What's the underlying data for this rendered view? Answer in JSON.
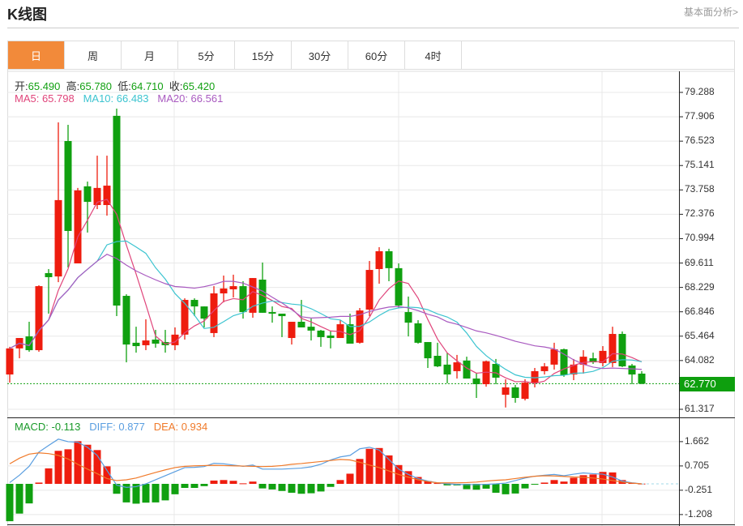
{
  "header": {
    "title": "K线图",
    "fundamental_link": "基本面分析>"
  },
  "tabs": [
    {
      "label": "日",
      "active": true
    },
    {
      "label": "周"
    },
    {
      "label": "月"
    },
    {
      "label": "5分"
    },
    {
      "label": "15分"
    },
    {
      "label": "30分"
    },
    {
      "label": "60分"
    },
    {
      "label": "4时"
    }
  ],
  "ohlc_info": {
    "open_label": "开:",
    "open": "65.490",
    "high_label": "高:",
    "high": "65.780",
    "low_label": "低:",
    "low": "64.710",
    "close_label": "收:",
    "close": "65.420"
  },
  "ma_info": {
    "ma5": "MA5: 65.798",
    "ma10": "MA10: 66.483",
    "ma20": "MA20: 66.561"
  },
  "macd_info": {
    "macd": "MACD: -0.113",
    "diff": "DIFF: 0.877",
    "dea": "DEA: 0.934"
  },
  "colors": {
    "up": "#ee1c0e",
    "down": "#10a010",
    "ma5": "#e0457b",
    "ma10": "#3cc4d0",
    "ma20": "#a95ac0",
    "diff": "#5a9ee0",
    "dea": "#f07a2a",
    "active_tab": "#f28a3a"
  },
  "chart_data": [
    {
      "type": "candlestick",
      "y_ticks": [
        "79.288",
        "77.906",
        "76.523",
        "75.141",
        "73.758",
        "72.376",
        "70.994",
        "69.611",
        "68.229",
        "66.846",
        "65.464",
        "64.082",
        "62.770",
        "61.317"
      ],
      "ylim": [
        61.317,
        79.288
      ],
      "last_price": "62.770",
      "moving_averages": [
        "MA5",
        "MA10",
        "MA20"
      ],
      "ohlc": [
        [
          63.29,
          64.86,
          62.83,
          64.77
        ],
        [
          64.77,
          65.36,
          64.21,
          65.36
        ],
        [
          65.45,
          66.28,
          64.58,
          64.67
        ],
        [
          64.67,
          68.35,
          64.58,
          68.3
        ],
        [
          69.04,
          69.27,
          66.74,
          68.81
        ],
        [
          68.85,
          77.59,
          68.53,
          73.18
        ],
        [
          76.53,
          77.45,
          69.36,
          71.43
        ],
        [
          69.59,
          73.87,
          69.59,
          73.73
        ],
        [
          73.96,
          74.23,
          71.34,
          73.08
        ],
        [
          72.9,
          75.7,
          72.67,
          73.87
        ],
        [
          72.9,
          75.7,
          72.3,
          74.0
        ],
        [
          77.96,
          78.37,
          66.6,
          67.2
        ],
        [
          67.75,
          67.84,
          63.98,
          64.99
        ],
        [
          65.09,
          66.0,
          64.53,
          64.9
        ],
        [
          64.95,
          66.42,
          64.67,
          65.22
        ],
        [
          65.27,
          65.82,
          64.81,
          65.04
        ],
        [
          65.13,
          65.82,
          64.53,
          64.95
        ],
        [
          64.95,
          65.96,
          64.67,
          65.55
        ],
        [
          65.55,
          67.61,
          65.27,
          67.52
        ],
        [
          67.52,
          67.61,
          66.6,
          67.15
        ],
        [
          67.15,
          67.15,
          65.96,
          66.46
        ],
        [
          65.64,
          68.3,
          65.41,
          67.89
        ],
        [
          67.89,
          68.9,
          67.38,
          68.17
        ],
        [
          68.12,
          68.95,
          67.66,
          68.3
        ],
        [
          68.3,
          68.58,
          66.46,
          66.83
        ],
        [
          66.79,
          68.76,
          66.51,
          68.76
        ],
        [
          68.67,
          69.64,
          66.79,
          66.79
        ],
        [
          66.83,
          67.15,
          66.23,
          66.74
        ],
        [
          66.74,
          66.74,
          65.41,
          66.6
        ],
        [
          65.36,
          66.28,
          64.99,
          66.28
        ],
        [
          66.28,
          67.52,
          65.96,
          65.96
        ],
        [
          66.0,
          66.46,
          65.22,
          65.78
        ],
        [
          65.78,
          65.82,
          64.86,
          65.41
        ],
        [
          65.5,
          65.78,
          64.77,
          65.36
        ],
        [
          65.36,
          66.37,
          65.36,
          66.14
        ],
        [
          66.14,
          66.74,
          65.04,
          65.04
        ],
        [
          65.09,
          67.06,
          65.04,
          66.92
        ],
        [
          66.97,
          69.73,
          66.6,
          69.22
        ],
        [
          69.27,
          70.51,
          68.44,
          70.28
        ],
        [
          70.28,
          70.42,
          68.58,
          69.32
        ],
        [
          69.32,
          69.59,
          67.06,
          67.2
        ],
        [
          66.83,
          67.71,
          65.45,
          66.23
        ],
        [
          66.19,
          66.37,
          65.04,
          65.09
        ],
        [
          65.13,
          65.13,
          63.66,
          64.21
        ],
        [
          64.35,
          65.09,
          63.71,
          63.75
        ],
        [
          63.85,
          64.53,
          62.79,
          63.29
        ],
        [
          63.48,
          64.4,
          63.06,
          63.98
        ],
        [
          64.08,
          64.3,
          63.06,
          63.06
        ],
        [
          63.06,
          63.39,
          61.96,
          62.74
        ],
        [
          62.74,
          64.08,
          62.6,
          64.04
        ],
        [
          63.89,
          64.17,
          62.74,
          63.11
        ],
        [
          62.14,
          63.02,
          61.42,
          62.56
        ],
        [
          62.56,
          62.7,
          61.69,
          61.96
        ],
        [
          61.91,
          63.02,
          61.82,
          62.83
        ],
        [
          62.83,
          63.66,
          62.56,
          63.48
        ],
        [
          63.48,
          63.94,
          63.29,
          63.75
        ],
        [
          63.85,
          65.09,
          63.57,
          64.72
        ],
        [
          64.72,
          64.76,
          63.16,
          63.25
        ],
        [
          63.29,
          64.17,
          62.97,
          63.85
        ],
        [
          63.85,
          64.67,
          63.34,
          64.3
        ],
        [
          64.21,
          64.53,
          63.89,
          63.98
        ],
        [
          63.94,
          64.9,
          63.75,
          64.63
        ],
        [
          63.94,
          66.0,
          63.71,
          65.59
        ],
        [
          65.59,
          65.73,
          63.71,
          63.75
        ],
        [
          63.8,
          63.89,
          62.74,
          63.29
        ],
        [
          63.34,
          63.48,
          62.74,
          62.77
        ]
      ]
    },
    {
      "type": "macd",
      "y_ticks": [
        "1.662",
        "0.705",
        "-0.251",
        "-1.208"
      ],
      "ylim": [
        -1.55,
        2.05
      ],
      "macd": [
        -1.47,
        -1.17,
        -0.77,
        0.05,
        0.61,
        1.3,
        1.36,
        1.68,
        1.54,
        1.33,
        0.69,
        -0.39,
        -0.73,
        -0.78,
        -0.74,
        -0.73,
        -0.65,
        -0.41,
        -0.16,
        -0.16,
        -0.09,
        0.13,
        0.15,
        0.12,
        0.02,
        0.09,
        -0.18,
        -0.22,
        -0.28,
        -0.35,
        -0.39,
        -0.37,
        -0.3,
        -0.12,
        0.15,
        0.4,
        0.98,
        1.38,
        1.41,
        1.12,
        0.74,
        0.5,
        0.27,
        0.11,
        0.03,
        -0.06,
        -0.06,
        -0.21,
        -0.23,
        -0.19,
        -0.35,
        -0.41,
        -0.38,
        -0.18,
        -0.02,
        0.05,
        0.15,
        0.09,
        0.24,
        0.34,
        0.37,
        0.47,
        0.45,
        0.15,
        0.05,
        0.01
      ],
      "diff": [
        0.05,
        0.34,
        0.69,
        1.25,
        1.51,
        1.76,
        1.66,
        1.64,
        1.44,
        1.12,
        0.53,
        -0.05,
        -0.14,
        -0.11,
        0,
        0.16,
        0.32,
        0.48,
        0.64,
        0.65,
        0.68,
        0.81,
        0.79,
        0.74,
        0.69,
        0.74,
        0.58,
        0.58,
        0.58,
        0.6,
        0.62,
        0.67,
        0.77,
        0.94,
        1.06,
        1.12,
        1.38,
        1.44,
        1.33,
        0.96,
        0.58,
        0.37,
        0.21,
        0.11,
        0.04,
        0,
        -0.02,
        -0.03,
        -0.03,
        -0.02,
        0,
        0.03,
        0.13,
        0.23,
        0.3,
        0.34,
        0.37,
        0.32,
        0.38,
        0.43,
        0.4,
        0.38,
        0.27,
        0.11,
        0.04,
        0
      ],
      "dea": [
        0.79,
        1.01,
        1.17,
        1.22,
        1.19,
        1.12,
        0.98,
        0.77,
        0.58,
        0.4,
        0.21,
        0.13,
        0.16,
        0.23,
        0.34,
        0.45,
        0.55,
        0.64,
        0.69,
        0.71,
        0.72,
        0.73,
        0.72,
        0.71,
        0.7,
        0.69,
        0.68,
        0.69,
        0.72,
        0.77,
        0.8,
        0.84,
        0.88,
        0.92,
        0.96,
        0.94,
        0.85,
        0.74,
        0.64,
        0.51,
        0.37,
        0.26,
        0.16,
        0.09,
        0.04,
        0.04,
        0.04,
        0.05,
        0.07,
        0.11,
        0.14,
        0.16,
        0.21,
        0.26,
        0.3,
        0.32,
        0.31,
        0.29,
        0.27,
        0.26,
        0.23,
        0.19,
        0.13,
        0.07,
        0.03,
        0
      ]
    }
  ]
}
